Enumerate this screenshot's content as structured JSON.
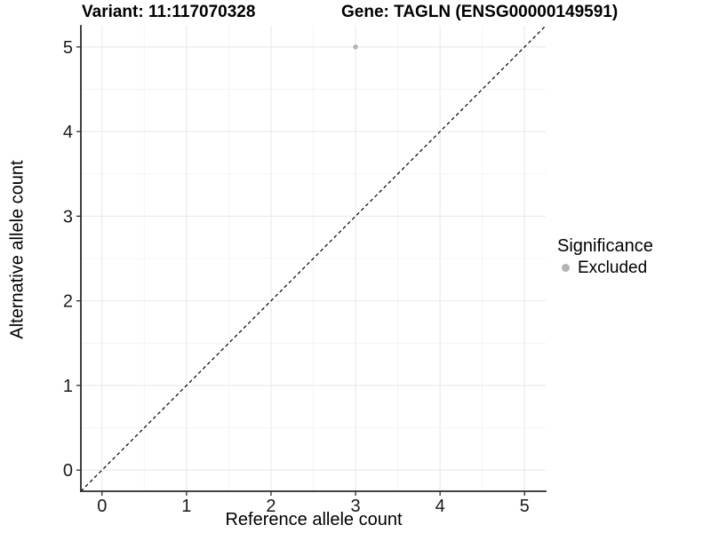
{
  "chart_data": {
    "type": "scatter",
    "title_left": "Variant: 11:117070328",
    "title_right": "Gene: TAGLN (ENSG00000149591)",
    "xlabel": "Reference allele count",
    "ylabel": "Alternative allele count",
    "xlim": [
      -0.25,
      5.25
    ],
    "ylim": [
      -0.25,
      5.25
    ],
    "xticks": [
      0,
      1,
      2,
      3,
      4,
      5
    ],
    "yticks": [
      0,
      1,
      2,
      3,
      4,
      5
    ],
    "minor_grid_step": 0.5,
    "grid": true,
    "reference_line": {
      "type": "identity",
      "style": "dashed",
      "color": "#000000",
      "from": [
        -0.25,
        -0.25
      ],
      "to": [
        5.25,
        5.25
      ]
    },
    "series": [
      {
        "name": "Excluded",
        "color": "#b3b3b3",
        "points": [
          [
            3,
            5
          ]
        ]
      }
    ],
    "legend": {
      "title": "Significance",
      "position": "right",
      "items": [
        {
          "label": "Excluded",
          "color": "#b3b3b3"
        }
      ]
    }
  },
  "colors": {
    "background": "#ffffff",
    "grid_major": "#e9e9e9",
    "grid_minor": "#f4f4f4",
    "axis_line": "#2a2a2a",
    "tick_text": "#1a1a1a"
  }
}
